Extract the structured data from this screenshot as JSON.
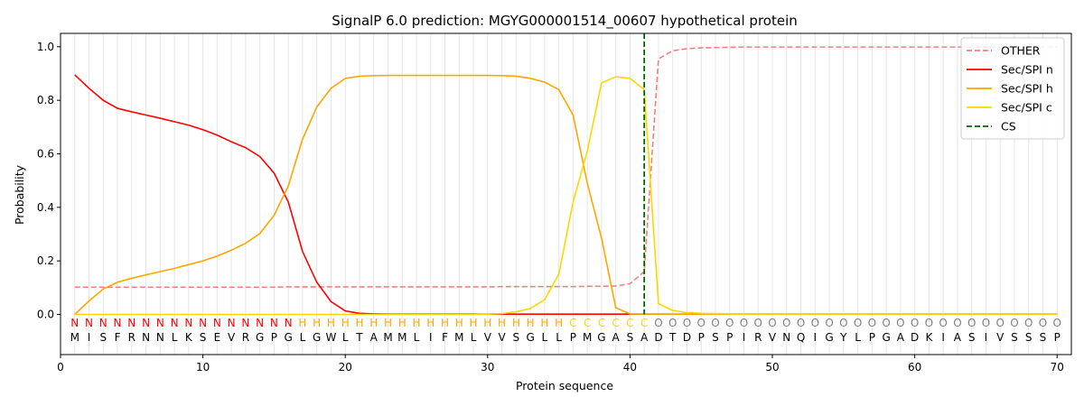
{
  "chart_data": {
    "type": "line",
    "title": "SignalP 6.0 prediction: MGYG000001514_00607 hypothetical protein",
    "xlabel": "Protein sequence",
    "ylabel": "Probability",
    "xlim": [
      0,
      71
    ],
    "ylim": [
      -0.15,
      1.05
    ],
    "xticks": [
      0,
      10,
      20,
      30,
      40,
      50,
      60,
      70
    ],
    "yticks": [
      0.0,
      0.2,
      0.4,
      0.6,
      0.8,
      1.0
    ],
    "ytick_labels": [
      "0.0",
      "0.2",
      "0.4",
      "0.6",
      "0.8",
      "1.0"
    ],
    "grid": "vertical lines at every residue",
    "legend_position": "top-right",
    "sequence": [
      "M",
      "I",
      "S",
      "F",
      "R",
      "N",
      "N",
      "L",
      "K",
      "S",
      "E",
      "V",
      "R",
      "G",
      "P",
      "G",
      "L",
      "G",
      "W",
      "L",
      "T",
      "A",
      "M",
      "M",
      "L",
      "I",
      "F",
      "M",
      "L",
      "V",
      "V",
      "S",
      "G",
      "L",
      "L",
      "P",
      "M",
      "G",
      "A",
      "S",
      "A",
      "D",
      "T",
      "D",
      "P",
      "S",
      "P",
      "I",
      "R",
      "V",
      "N",
      "Q",
      "I",
      "G",
      "Y",
      "L",
      "P",
      "G",
      "A",
      "D",
      "K",
      "I",
      "A",
      "S",
      "I",
      "V",
      "S",
      "S",
      "S",
      "P"
    ],
    "region_labels": [
      "N",
      "N",
      "N",
      "N",
      "N",
      "N",
      "N",
      "N",
      "N",
      "N",
      "N",
      "N",
      "N",
      "N",
      "N",
      "N",
      "H",
      "H",
      "H",
      "H",
      "H",
      "H",
      "H",
      "H",
      "H",
      "H",
      "H",
      "H",
      "H",
      "H",
      "H",
      "H",
      "H",
      "H",
      "H",
      "C",
      "C",
      "C",
      "C",
      "C",
      "C",
      "O",
      "O",
      "O",
      "O",
      "O",
      "O",
      "O",
      "O",
      "O",
      "O",
      "O",
      "O",
      "O",
      "O",
      "O",
      "O",
      "O",
      "O",
      "O",
      "O",
      "O",
      "O",
      "O",
      "O",
      "O",
      "O",
      "O",
      "O",
      "O"
    ],
    "region_colors": {
      "N": "#ff0000",
      "H": "#ffa500",
      "C": "#ffd700",
      "O": "#808080"
    },
    "cleavage_site": 41,
    "series": [
      {
        "name": "OTHER",
        "color": "#f08080",
        "dashed": true,
        "values": [
          0.102,
          0.102,
          0.102,
          0.102,
          0.102,
          0.102,
          0.102,
          0.102,
          0.102,
          0.102,
          0.102,
          0.102,
          0.102,
          0.102,
          0.102,
          0.103,
          0.103,
          0.103,
          0.103,
          0.103,
          0.103,
          0.103,
          0.103,
          0.103,
          0.103,
          0.103,
          0.103,
          0.103,
          0.103,
          0.103,
          0.104,
          0.104,
          0.104,
          0.104,
          0.104,
          0.104,
          0.105,
          0.105,
          0.106,
          0.115,
          0.16,
          0.955,
          0.985,
          0.993,
          0.996,
          0.997,
          0.998,
          0.999,
          0.999,
          0.999,
          0.999,
          0.999,
          0.999,
          0.999,
          0.999,
          0.999,
          0.999,
          0.999,
          0.999,
          0.999,
          0.999,
          0.999,
          0.999,
          0.999,
          0.999,
          0.999,
          0.999,
          0.999,
          0.999,
          0.999
        ]
      },
      {
        "name": "Sec/SPI n",
        "color": "#ff0000",
        "dashed": false,
        "values": [
          0.895,
          0.845,
          0.8,
          0.77,
          0.757,
          0.745,
          0.733,
          0.72,
          0.707,
          0.69,
          0.67,
          0.645,
          0.623,
          0.59,
          0.528,
          0.42,
          0.235,
          0.12,
          0.048,
          0.013,
          0.004,
          0.002,
          0.001,
          0.001,
          0.001,
          0.001,
          0.001,
          0.001,
          0.001,
          0.001,
          0.001,
          0.001,
          0.001,
          0.001,
          0.001,
          0.001,
          0.001,
          0.001,
          0.001,
          0.001,
          0.001,
          0.001,
          0.001,
          0.001,
          0.001,
          0.001,
          0.001,
          0.001,
          0.001,
          0.001,
          0.001,
          0.001,
          0.001,
          0.001,
          0.001,
          0.001,
          0.001,
          0.001,
          0.001,
          0.001,
          0.001,
          0.001,
          0.001,
          0.001,
          0.001,
          0.001,
          0.001,
          0.001,
          0.001,
          0.001
        ]
      },
      {
        "name": "Sec/SPI h",
        "color": "#ffa500",
        "dashed": false,
        "values": [
          0.0,
          0.05,
          0.095,
          0.12,
          0.135,
          0.148,
          0.16,
          0.172,
          0.186,
          0.2,
          0.218,
          0.24,
          0.266,
          0.302,
          0.37,
          0.48,
          0.655,
          0.775,
          0.845,
          0.882,
          0.89,
          0.892,
          0.893,
          0.893,
          0.893,
          0.893,
          0.893,
          0.893,
          0.893,
          0.893,
          0.892,
          0.89,
          0.882,
          0.868,
          0.84,
          0.745,
          0.49,
          0.285,
          0.025,
          0.002,
          0.001,
          0.001,
          0.001,
          0.001,
          0.001,
          0.001,
          0.001,
          0.001,
          0.001,
          0.001,
          0.001,
          0.001,
          0.001,
          0.001,
          0.001,
          0.001,
          0.001,
          0.001,
          0.001,
          0.001,
          0.001,
          0.001,
          0.001,
          0.001,
          0.001,
          0.001,
          0.001,
          0.001,
          0.001,
          0.001
        ]
      },
      {
        "name": "Sec/SPI c",
        "color": "#ffd700",
        "dashed": false,
        "values": [
          0.0,
          0.0,
          0.0,
          0.0,
          0.0,
          0.0,
          0.0,
          0.0,
          0.0,
          0.0,
          0.0,
          0.0,
          0.0,
          0.0,
          0.0,
          0.0,
          0.0,
          0.0,
          0.0,
          0.0,
          0.0,
          0.0,
          0.0,
          0.0,
          0.0,
          0.0,
          0.0,
          0.0,
          0.0,
          0.001,
          0.003,
          0.01,
          0.022,
          0.055,
          0.15,
          0.42,
          0.61,
          0.865,
          0.888,
          0.882,
          0.84,
          0.04,
          0.015,
          0.007,
          0.004,
          0.003,
          0.002,
          0.002,
          0.002,
          0.002,
          0.002,
          0.002,
          0.002,
          0.002,
          0.002,
          0.002,
          0.002,
          0.002,
          0.002,
          0.002,
          0.002,
          0.002,
          0.002,
          0.002,
          0.002,
          0.002,
          0.002,
          0.002,
          0.002,
          0.002
        ]
      }
    ],
    "cs_legend": {
      "name": "CS",
      "color": "#006400"
    }
  }
}
